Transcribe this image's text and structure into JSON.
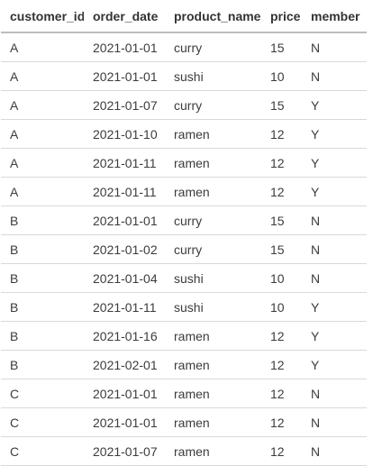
{
  "table": {
    "columns": [
      "customer_id",
      "order_date",
      "product_name",
      "price",
      "member"
    ],
    "rows": [
      [
        "A",
        "2021-01-01",
        "curry",
        "15",
        "N"
      ],
      [
        "A",
        "2021-01-01",
        "sushi",
        "10",
        "N"
      ],
      [
        "A",
        "2021-01-07",
        "curry",
        "15",
        "Y"
      ],
      [
        "A",
        "2021-01-10",
        "ramen",
        "12",
        "Y"
      ],
      [
        "A",
        "2021-01-11",
        "ramen",
        "12",
        "Y"
      ],
      [
        "A",
        "2021-01-11",
        "ramen",
        "12",
        "Y"
      ],
      [
        "B",
        "2021-01-01",
        "curry",
        "15",
        "N"
      ],
      [
        "B",
        "2021-01-02",
        "curry",
        "15",
        "N"
      ],
      [
        "B",
        "2021-01-04",
        "sushi",
        "10",
        "N"
      ],
      [
        "B",
        "2021-01-11",
        "sushi",
        "10",
        "Y"
      ],
      [
        "B",
        "2021-01-16",
        "ramen",
        "12",
        "Y"
      ],
      [
        "B",
        "2021-02-01",
        "ramen",
        "12",
        "Y"
      ],
      [
        "C",
        "2021-01-01",
        "ramen",
        "12",
        "N"
      ],
      [
        "C",
        "2021-01-01",
        "ramen",
        "12",
        "N"
      ],
      [
        "C",
        "2021-01-07",
        "ramen",
        "12",
        "N"
      ]
    ]
  },
  "colors": {
    "text": "#3c3c3c",
    "header_text": "#333333",
    "header_rule": "#bdbdbd",
    "row_rule": "#d9d9d9",
    "background": "#ffffff"
  }
}
